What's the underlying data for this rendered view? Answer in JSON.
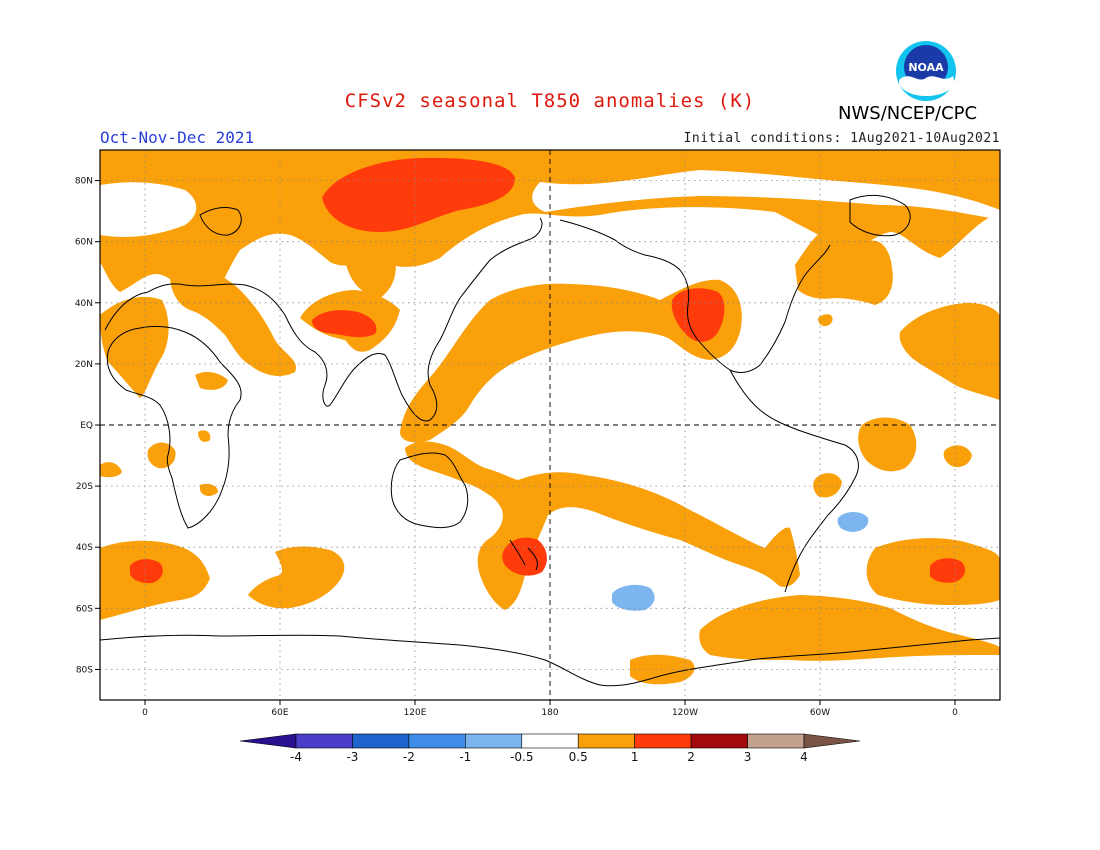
{
  "header": {
    "title": "CFSv2 seasonal T850 anomalies (K)",
    "title_color": "#e0180c",
    "season": "Oct-Nov-Dec 2021",
    "season_color": "#2a3fd8",
    "initial_conditions": "Initial conditions: 1Aug2021-10Aug2021",
    "agency": "NWS/NCEP/CPC",
    "logo_text": "NOAA",
    "logo_icon": "noaa-logo-icon"
  },
  "map": {
    "projection": "equirectangular",
    "lon_range": [
      -20,
      380
    ],
    "lat_range": [
      -90,
      90
    ],
    "lat_ticks": [
      {
        "lat": 80,
        "label": "80N"
      },
      {
        "lat": 60,
        "label": "60N"
      },
      {
        "lat": 40,
        "label": "40N"
      },
      {
        "lat": 20,
        "label": "20N"
      },
      {
        "lat": 0,
        "label": "EQ"
      },
      {
        "lat": -20,
        "label": "20S"
      },
      {
        "lat": -40,
        "label": "40S"
      },
      {
        "lat": -60,
        "label": "60S"
      },
      {
        "lat": -80,
        "label": "80S"
      }
    ],
    "lon_ticks": [
      {
        "lon": 0,
        "label": "0"
      },
      {
        "lon": 60,
        "label": "60E"
      },
      {
        "lon": 120,
        "label": "120E"
      },
      {
        "lon": 180,
        "label": "180"
      },
      {
        "lon": 240,
        "label": "120W"
      },
      {
        "lon": 300,
        "label": "60W"
      },
      {
        "lon": 360,
        "label": "0"
      }
    ],
    "grid": "dotted",
    "reference_lines": [
      "equator",
      "dateline"
    ]
  },
  "colorbar": {
    "labels": [
      "-4",
      "-3",
      "-2",
      "-1",
      "-0.5",
      "0.5",
      "1",
      "2",
      "3",
      "4"
    ],
    "colors": [
      "#2a0f8f",
      "#4b3fc9",
      "#1f63cc",
      "#3f8de8",
      "#7db5f0",
      "#ffffff",
      "#f9a00a",
      "#ff3b0c",
      "#a3080c",
      "#c4a08e",
      "#7a5546"
    ]
  },
  "anomalies": [
    {
      "name": "warm-band-arctic",
      "level": "0.5-1"
    },
    {
      "name": "warm-core-siberia",
      "level": "1-2"
    },
    {
      "name": "warm-core-tibet",
      "level": "1-2"
    },
    {
      "name": "warm-core-sw-usa",
      "level": "1-2"
    },
    {
      "name": "warm-core-new-zealand",
      "level": "1-2"
    },
    {
      "name": "warm-core-south-atlantic",
      "level": "1-2"
    },
    {
      "name": "cool-south-pacific",
      "level": "-1 to -0.5"
    },
    {
      "name": "cool-south-atlantic",
      "level": "-1 to -0.5"
    }
  ]
}
